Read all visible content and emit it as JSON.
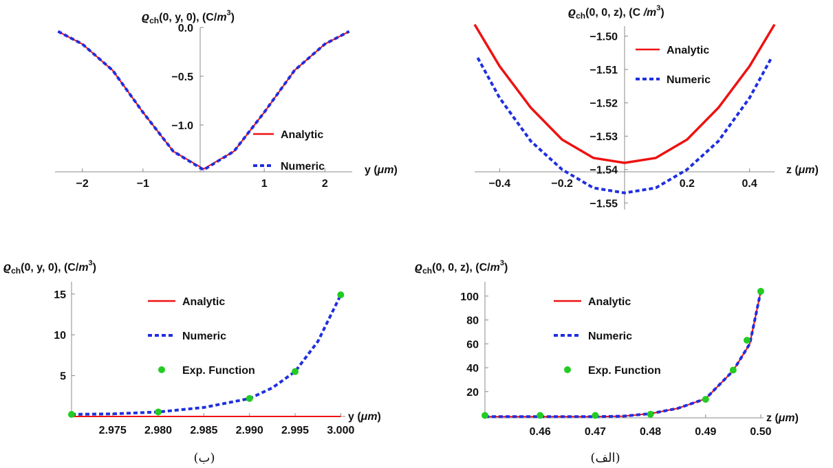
{
  "colors": {
    "analytic": "#ee1111",
    "numeric": "#1f2fe0",
    "exp": "#22cc22",
    "axis": "#888888"
  },
  "captions": {
    "left": "(ب)",
    "right": "(الف)"
  },
  "chart_data": [
    {
      "id": "top-left",
      "type": "line",
      "ylabel": "ϱch(0, y, 0), (C/m3)",
      "ylabel_parts": {
        "sym": "ϱ",
        "sub": "ch",
        "args": "(0, y, 0), (C/",
        "unit": "m",
        "exp": "3",
        "close": ")"
      },
      "xlabel": "y (μm)",
      "xlabel_parts": {
        "a": "y (",
        "b": "μm",
        "c": ")"
      },
      "xlim": [
        -2.45,
        2.45
      ],
      "ylim": [
        -1.48,
        0.0
      ],
      "x_ticks": [
        -2,
        -1,
        0,
        1,
        2
      ],
      "x_tick_labels": [
        "−2",
        "−1",
        "",
        "1",
        "2"
      ],
      "y_ticks": [
        0.0,
        -0.5,
        -1.0
      ],
      "y_tick_labels": [
        "0.0",
        "−0.5",
        "−1.0"
      ],
      "legend": [
        "Analytic",
        "Numeric"
      ],
      "series": [
        {
          "name": "Analytic",
          "style": "solid",
          "x": [
            -2.4,
            -2.0,
            -1.5,
            -1.0,
            -0.5,
            0.0,
            0.5,
            1.0,
            1.5,
            2.0,
            2.4
          ],
          "y": [
            -0.04,
            -0.17,
            -0.44,
            -0.87,
            -1.27,
            -1.45,
            -1.27,
            -0.87,
            -0.44,
            -0.17,
            -0.04
          ]
        },
        {
          "name": "Numeric",
          "style": "dashed",
          "x": [
            -2.4,
            -2.0,
            -1.5,
            -1.0,
            -0.5,
            0.0,
            0.5,
            1.0,
            1.5,
            2.0,
            2.4
          ],
          "y": [
            -0.04,
            -0.17,
            -0.44,
            -0.87,
            -1.27,
            -1.46,
            -1.27,
            -0.87,
            -0.44,
            -0.17,
            -0.04
          ]
        }
      ]
    },
    {
      "id": "top-right",
      "type": "line",
      "ylabel": "ϱch(0, 0, z), (C/m3)",
      "ylabel_parts": {
        "sym": "ϱ",
        "sub": "ch",
        "args": "(0, 0, z), (C",
        "unit": " /m",
        "exp": "3",
        "close": ")"
      },
      "xlabel": "z (μm)",
      "xlabel_parts": {
        "a": "z (",
        "b": "μm",
        "c": ")"
      },
      "xlim": [
        -0.48,
        0.48
      ],
      "ylim": [
        -1.552,
        -1.497
      ],
      "x_ticks": [
        -0.4,
        -0.2,
        0.2,
        0.4
      ],
      "x_tick_labels": [
        "−0.4",
        "−0.2",
        "0.2",
        "0.4"
      ],
      "y_ticks": [
        -1.5,
        -1.51,
        -1.52,
        -1.53,
        -1.54,
        -1.55
      ],
      "y_tick_labels": [
        "−1.50",
        "−1.51",
        "−1.52",
        "−1.53",
        "−1.54",
        "−1.55"
      ],
      "legend": [
        "Analytic",
        "Numeric"
      ],
      "series": [
        {
          "name": "Analytic",
          "style": "solid",
          "x": [
            -0.48,
            -0.4,
            -0.3,
            -0.2,
            -0.1,
            0.0,
            0.1,
            0.2,
            0.3,
            0.4,
            0.48
          ],
          "y": [
            -1.4965,
            -1.509,
            -1.5215,
            -1.531,
            -1.5365,
            -1.538,
            -1.5365,
            -1.531,
            -1.5215,
            -1.509,
            -1.4965
          ]
        },
        {
          "name": "Numeric",
          "style": "dashed",
          "x": [
            -0.47,
            -0.4,
            -0.3,
            -0.2,
            -0.1,
            0.0,
            0.1,
            0.2,
            0.3,
            0.4,
            0.47
          ],
          "y": [
            -1.5065,
            -1.5185,
            -1.5315,
            -1.54,
            -1.5455,
            -1.547,
            -1.5455,
            -1.54,
            -1.5315,
            -1.5185,
            -1.5065
          ]
        }
      ]
    },
    {
      "id": "bottom-left",
      "type": "line",
      "ylabel": "ϱch(0, y, 0), (C/m3)",
      "ylabel_parts": {
        "sym": "ϱ",
        "sub": "ch",
        "args": "(0, y, 0), (C/",
        "unit": "m",
        "exp": "3",
        "close": ")"
      },
      "xlabel": "y (μm)",
      "xlabel_parts": {
        "a": "y (",
        "b": "μm",
        "c": ")"
      },
      "xlim": [
        2.9705,
        3.0005
      ],
      "ylim": [
        0,
        16.5
      ],
      "x_ticks": [
        2.975,
        2.98,
        2.985,
        2.99,
        2.995,
        3.0
      ],
      "x_tick_labels": [
        "2.975",
        "2.980",
        "2.985",
        "2.990",
        "2.995",
        "3.000"
      ],
      "y_ticks": [
        5,
        10,
        15
      ],
      "y_tick_labels": [
        "5",
        "10",
        "15"
      ],
      "legend": [
        "Analytic",
        "Numeric",
        "Exp. Function"
      ],
      "series": [
        {
          "name": "Analytic",
          "style": "solid",
          "x": [
            2.9705,
            3.0
          ],
          "y": [
            0.0,
            0.0
          ]
        },
        {
          "name": "Numeric",
          "style": "dashed",
          "x": [
            2.9705,
            2.975,
            2.98,
            2.985,
            2.99,
            2.9925,
            2.995,
            2.9975,
            3.0
          ],
          "y": [
            0.25,
            0.32,
            0.55,
            1.1,
            2.2,
            3.5,
            5.5,
            9.2,
            14.9
          ]
        },
        {
          "name": "Exp. Function",
          "style": "points",
          "x": [
            2.9705,
            2.98,
            2.99,
            2.995,
            3.0
          ],
          "y": [
            0.25,
            0.55,
            2.2,
            5.5,
            14.9
          ]
        }
      ]
    },
    {
      "id": "bottom-right",
      "type": "line",
      "ylabel": "ϱch(0, 0, z), (C/m3)",
      "ylabel_parts": {
        "sym": "ϱ",
        "sub": "ch",
        "args": "(0, 0, z), (C/",
        "unit": "m",
        "exp": "3",
        "close": ")"
      },
      "xlabel": "z (μm)",
      "xlabel_parts": {
        "a": "z (",
        "b": "μm",
        "c": ")"
      },
      "xlim": [
        0.45,
        0.5005
      ],
      "ylim": [
        -2,
        112
      ],
      "x_ticks": [
        0.46,
        0.47,
        0.48,
        0.49,
        0.5
      ],
      "x_tick_labels": [
        "0.46",
        "0.47",
        "0.48",
        "0.49",
        "0.50"
      ],
      "y_ticks": [
        20,
        40,
        60,
        80,
        100
      ],
      "y_tick_labels": [
        "20",
        "40",
        "60",
        "80",
        "100"
      ],
      "legend": [
        "Analytic",
        "Numeric",
        "Exp. Function"
      ],
      "series": [
        {
          "name": "Analytic",
          "style": "solid",
          "x": [
            0.45,
            0.46,
            0.47,
            0.475,
            0.48,
            0.485,
            0.49,
            0.495,
            0.498,
            0.5
          ],
          "y": [
            -1.0,
            -1.0,
            -1.0,
            -0.6,
            1.5,
            6.0,
            14.0,
            37.5,
            60.0,
            104.0
          ]
        },
        {
          "name": "Numeric",
          "style": "dashed",
          "x": [
            0.45,
            0.46,
            0.47,
            0.475,
            0.48,
            0.485,
            0.49,
            0.495,
            0.498,
            0.5
          ],
          "y": [
            -1.0,
            -1.0,
            -1.0,
            -0.6,
            1.5,
            6.0,
            14.0,
            37.5,
            60.0,
            104.0
          ]
        },
        {
          "name": "Exp. Function",
          "style": "points",
          "x": [
            0.45,
            0.46,
            0.47,
            0.48,
            0.49,
            0.495,
            0.4975,
            0.5
          ],
          "y": [
            0.0,
            0.0,
            0.0,
            1.0,
            13.5,
            38.0,
            63.0,
            104.0
          ]
        }
      ]
    }
  ]
}
